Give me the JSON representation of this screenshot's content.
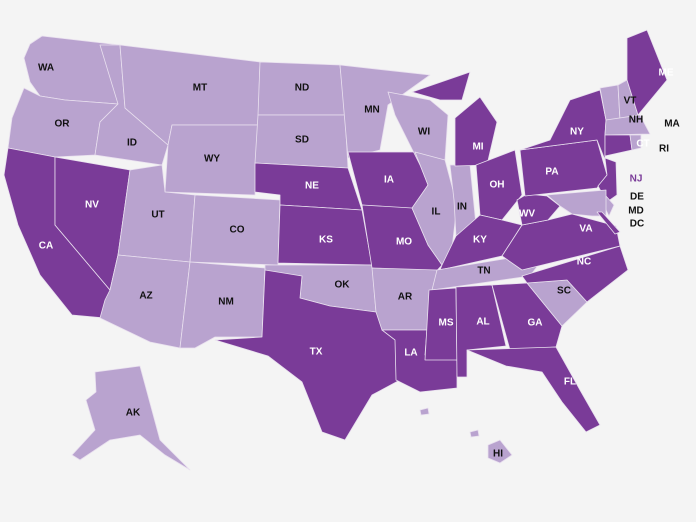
{
  "colors": {
    "background": "#f4f4f4",
    "dark": "#7a3b98",
    "light": "#b9a3cf",
    "label_on_dark": "#ffffff",
    "label_on_light": "#111111",
    "label_outside_dark": "#7a3b98"
  },
  "states": [
    {
      "abbr": "WA",
      "shade": "light"
    },
    {
      "abbr": "OR",
      "shade": "light"
    },
    {
      "abbr": "CA",
      "shade": "dark"
    },
    {
      "abbr": "NV",
      "shade": "dark"
    },
    {
      "abbr": "ID",
      "shade": "light"
    },
    {
      "abbr": "MT",
      "shade": "light"
    },
    {
      "abbr": "WY",
      "shade": "light"
    },
    {
      "abbr": "UT",
      "shade": "light"
    },
    {
      "abbr": "CO",
      "shade": "light"
    },
    {
      "abbr": "AZ",
      "shade": "light"
    },
    {
      "abbr": "NM",
      "shade": "light"
    },
    {
      "abbr": "ND",
      "shade": "light"
    },
    {
      "abbr": "SD",
      "shade": "light"
    },
    {
      "abbr": "NE",
      "shade": "dark"
    },
    {
      "abbr": "KS",
      "shade": "dark"
    },
    {
      "abbr": "OK",
      "shade": "light"
    },
    {
      "abbr": "TX",
      "shade": "dark"
    },
    {
      "abbr": "MN",
      "shade": "light"
    },
    {
      "abbr": "IA",
      "shade": "dark"
    },
    {
      "abbr": "MO",
      "shade": "dark"
    },
    {
      "abbr": "AR",
      "shade": "light"
    },
    {
      "abbr": "LA",
      "shade": "dark"
    },
    {
      "abbr": "WI",
      "shade": "light"
    },
    {
      "abbr": "IL",
      "shade": "light"
    },
    {
      "abbr": "IN",
      "shade": "light"
    },
    {
      "abbr": "MI",
      "shade": "dark"
    },
    {
      "abbr": "OH",
      "shade": "dark"
    },
    {
      "abbr": "KY",
      "shade": "dark"
    },
    {
      "abbr": "TN",
      "shade": "light"
    },
    {
      "abbr": "MS",
      "shade": "dark"
    },
    {
      "abbr": "AL",
      "shade": "dark"
    },
    {
      "abbr": "GA",
      "shade": "dark"
    },
    {
      "abbr": "FL",
      "shade": "dark"
    },
    {
      "abbr": "SC",
      "shade": "light"
    },
    {
      "abbr": "NC",
      "shade": "dark"
    },
    {
      "abbr": "VA",
      "shade": "dark"
    },
    {
      "abbr": "WV",
      "shade": "dark"
    },
    {
      "abbr": "PA",
      "shade": "dark"
    },
    {
      "abbr": "NY",
      "shade": "dark"
    },
    {
      "abbr": "VT",
      "shade": "light"
    },
    {
      "abbr": "NH",
      "shade": "light"
    },
    {
      "abbr": "ME",
      "shade": "dark"
    },
    {
      "abbr": "MA",
      "shade": "light"
    },
    {
      "abbr": "CT",
      "shade": "dark"
    },
    {
      "abbr": "RI",
      "shade": "light"
    },
    {
      "abbr": "NJ",
      "shade": "dark"
    },
    {
      "abbr": "DE",
      "shade": "light"
    },
    {
      "abbr": "MD",
      "shade": "light"
    },
    {
      "abbr": "DC",
      "shade": "dark"
    },
    {
      "abbr": "AK",
      "shade": "light"
    },
    {
      "abbr": "HI",
      "shade": "light"
    }
  ]
}
